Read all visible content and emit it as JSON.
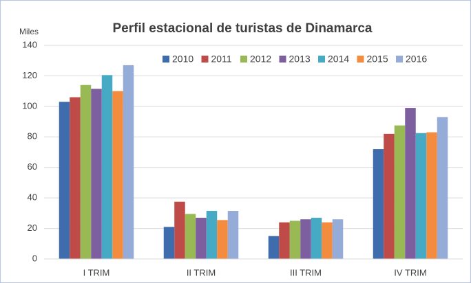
{
  "chart_data": {
    "type": "bar",
    "title": "Perfil estacional de turistas de Dinamarca",
    "y_label": "Miles",
    "categories": [
      "I TRIM",
      "II TRIM",
      "III TRIM",
      "IV TRIM"
    ],
    "series": [
      {
        "name": "2010",
        "color": "#3f6cad",
        "values": [
          103,
          21,
          15,
          72
        ]
      },
      {
        "name": "2011",
        "color": "#be4b48",
        "values": [
          106,
          37.5,
          24,
          82
        ]
      },
      {
        "name": "2012",
        "color": "#98b954",
        "values": [
          114,
          29.5,
          25,
          87.5
        ]
      },
      {
        "name": "2013",
        "color": "#7d5fa0",
        "values": [
          111.5,
          27,
          26,
          99
        ]
      },
      {
        "name": "2014",
        "color": "#46aac5",
        "values": [
          120.5,
          31.5,
          27,
          82.5
        ]
      },
      {
        "name": "2015",
        "color": "#f38c3e",
        "values": [
          110,
          25.5,
          24,
          83
        ]
      },
      {
        "name": "2016",
        "color": "#95acd8",
        "values": [
          127,
          31.5,
          26,
          93
        ]
      }
    ],
    "ylim": [
      0,
      140
    ],
    "yticks": [
      0,
      20,
      40,
      60,
      80,
      100,
      120,
      140
    ],
    "grid": true,
    "legend": "top"
  }
}
